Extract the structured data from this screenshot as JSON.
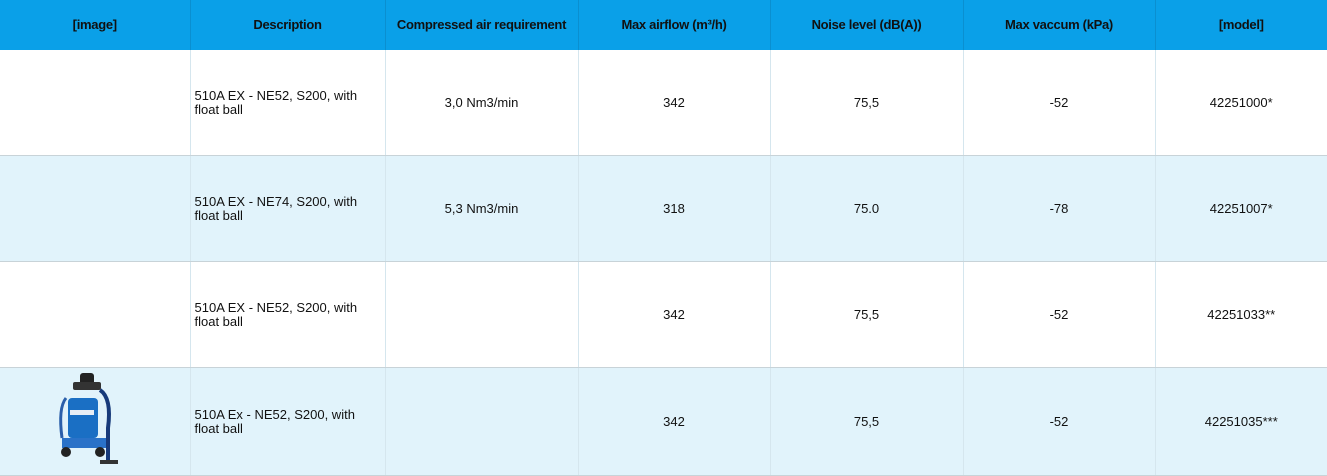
{
  "table": {
    "header": [
      "[image]",
      "Description",
      "Compressed air requirement",
      "Max airflow (m³/h)",
      "Noise level (dB(A))",
      "Max vaccum (kPa)",
      "[model]"
    ],
    "rows": [
      {
        "description": "510A EX - NE52, S200, with float ball",
        "air": "3,0 Nm3/min",
        "airflow": "342",
        "noise": "75,5",
        "vacuum": "-52",
        "model": "42251000*"
      },
      {
        "description": "510A EX - NE74, S200, with float ball",
        "air": "5,3 Nm3/min",
        "airflow": "318",
        "noise": "75.0",
        "vacuum": "-78",
        "model": "42251007*"
      },
      {
        "description": "510A EX - NE52, S200, with float ball",
        "airflow": "342",
        "noise": "75,5",
        "vacuum": "-52",
        "model": "42251033**"
      },
      {
        "description": "510A Ex - NE52, S200, with float ball",
        "airflow": "342",
        "noise": "75,5",
        "vacuum": "-52",
        "model": "42251035***"
      }
    ]
  }
}
